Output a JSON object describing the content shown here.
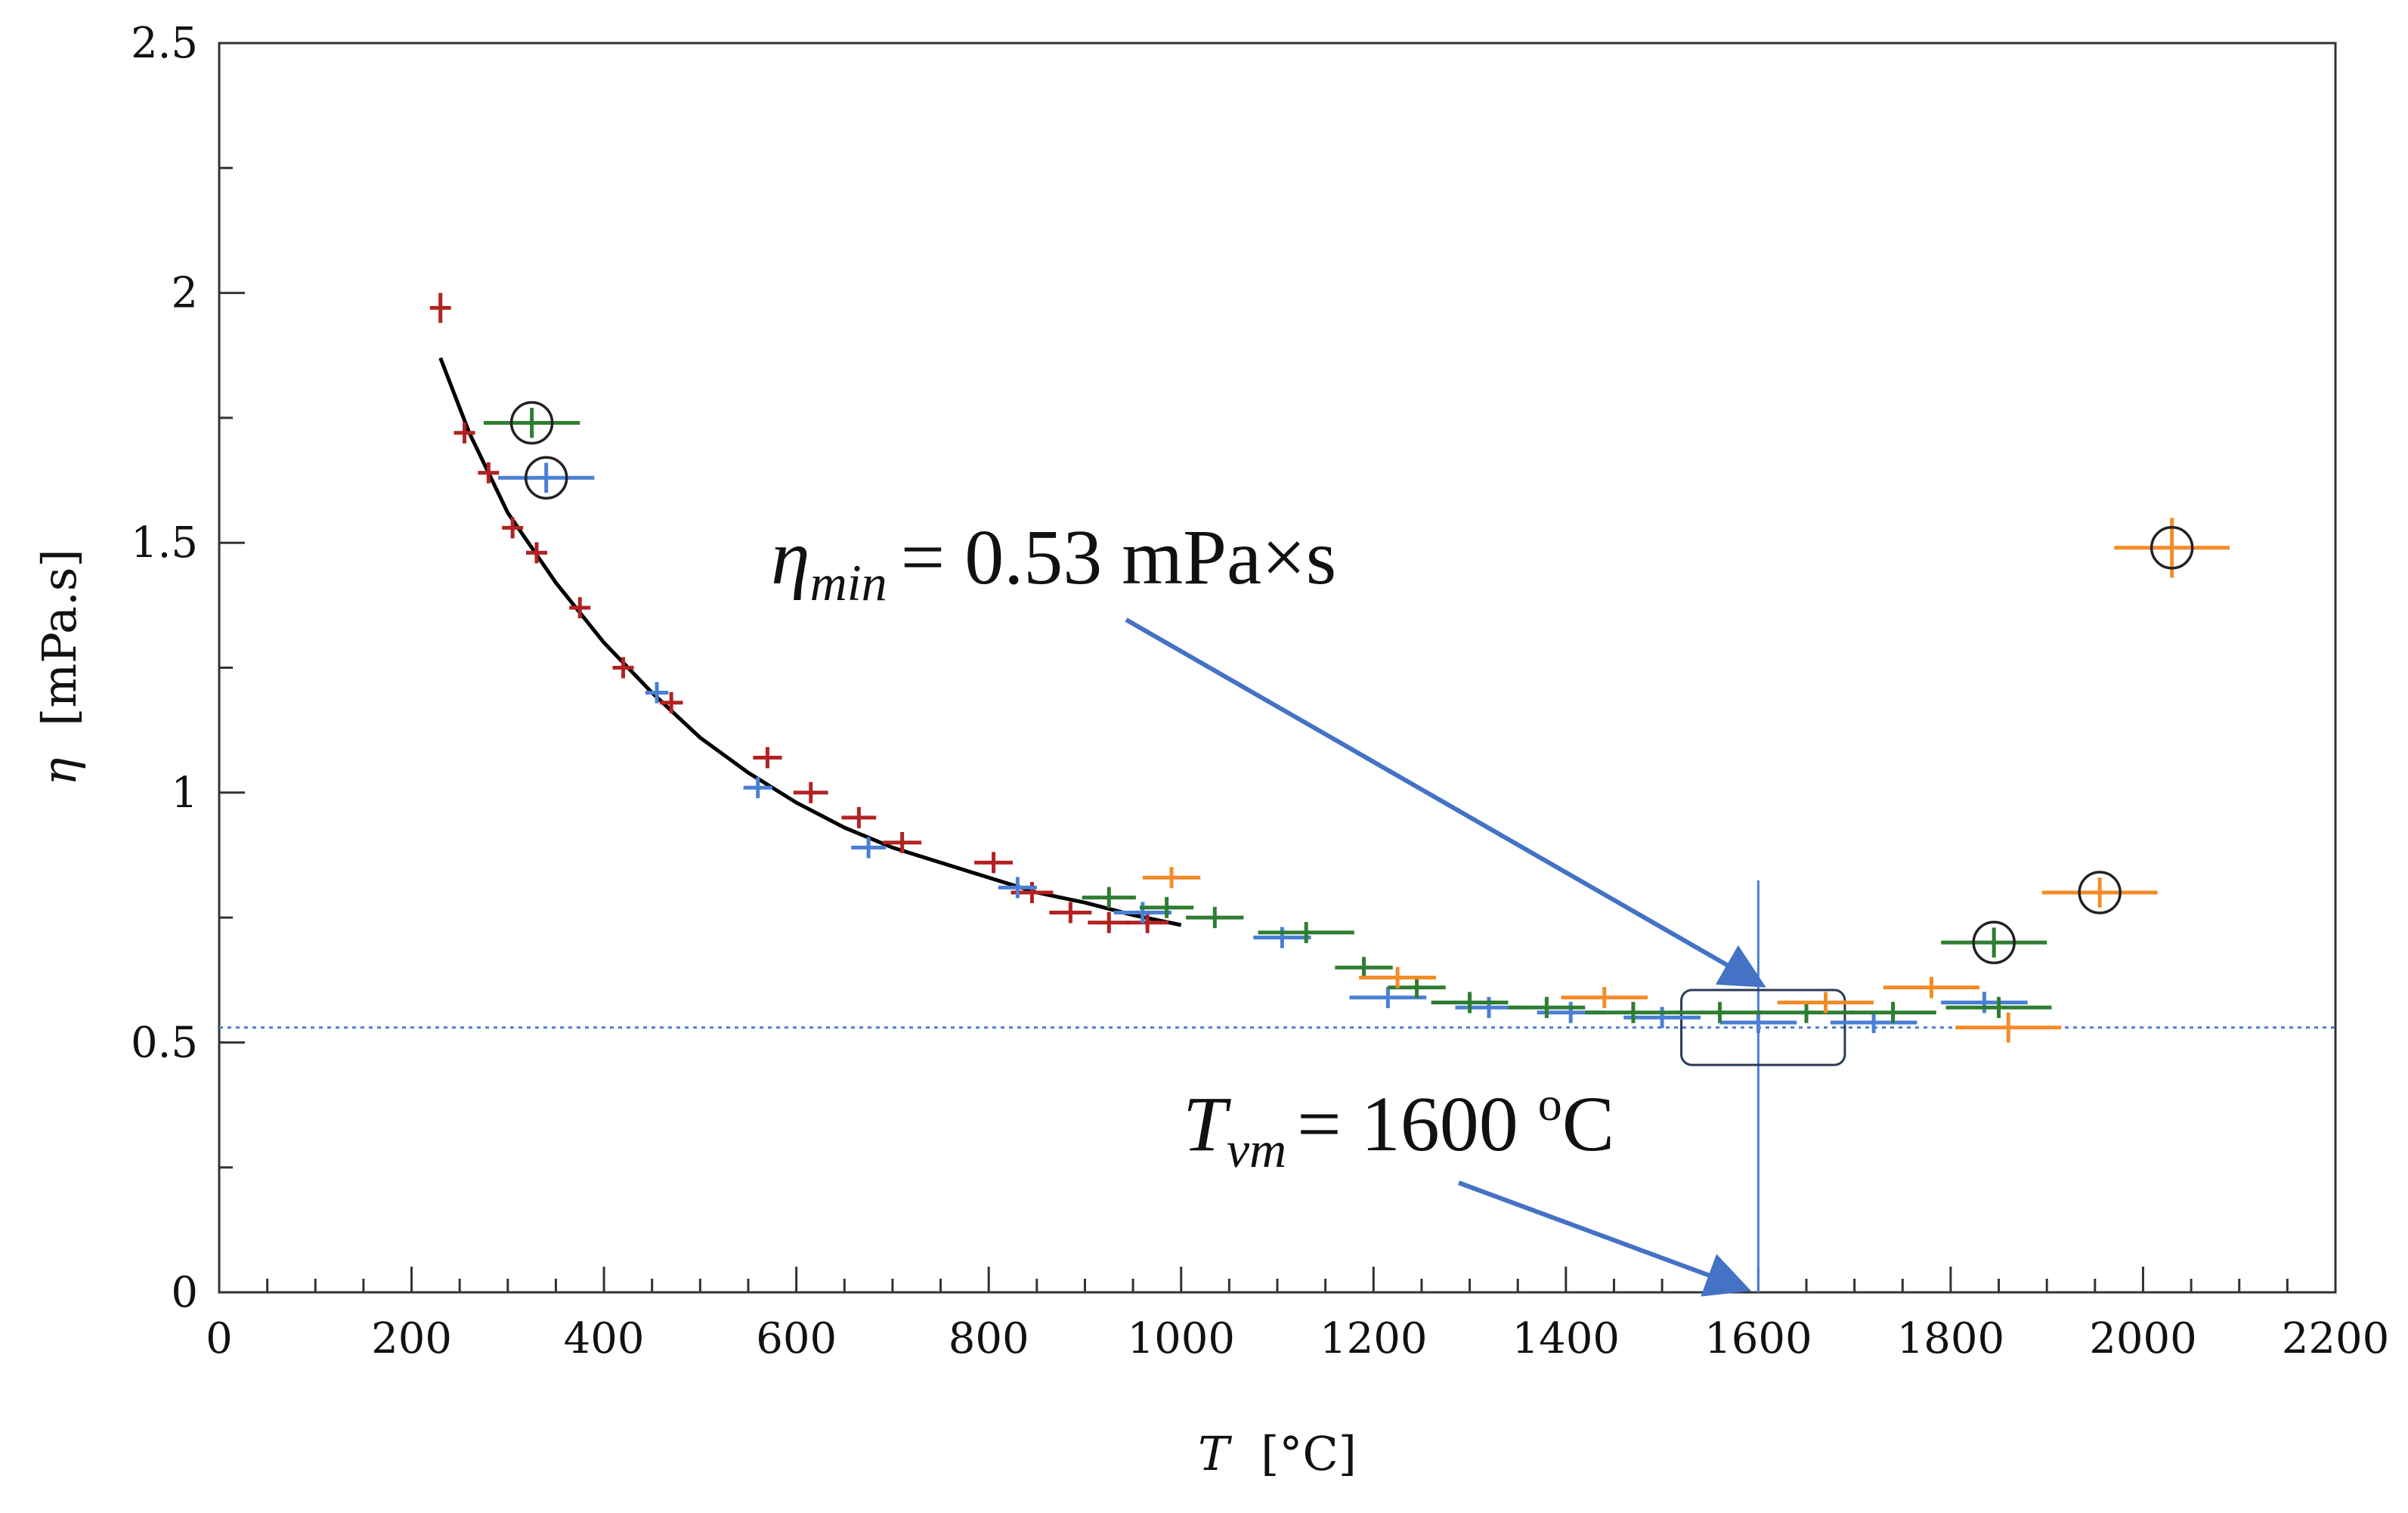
{
  "chart_data": {
    "type": "scatter",
    "title": "",
    "xlabel": {
      "var": "T",
      "unit": "[°C]"
    },
    "ylabel": {
      "var": "η",
      "unit": "[mPa.s]"
    },
    "xlim": [
      0,
      2200
    ],
    "ylim": [
      0,
      2.5
    ],
    "x_ticks": [
      "0",
      "200",
      "400",
      "600",
      "800",
      "1000",
      "1200",
      "1400",
      "1600",
      "1800",
      "2000",
      "2200"
    ],
    "y_ticks": [
      "0",
      "0.5",
      "1",
      "1.5",
      "2",
      "2.5"
    ],
    "grid": false,
    "legend": "none",
    "series": [
      {
        "color": "#b22222",
        "points": [
          {
            "x": 230,
            "y": 1.97,
            "xerr": 8,
            "yerr": 0.03
          },
          {
            "x": 255,
            "y": 1.72,
            "xerr": 8,
            "yerr": 0.02
          },
          {
            "x": 280,
            "y": 1.64,
            "xerr": 8,
            "yerr": 0.02
          },
          {
            "x": 305,
            "y": 1.53,
            "xerr": 8,
            "yerr": 0.02
          },
          {
            "x": 330,
            "y": 1.48,
            "xerr": 8,
            "yerr": 0.02
          },
          {
            "x": 375,
            "y": 1.37,
            "xerr": 10,
            "yerr": 0.02
          },
          {
            "x": 420,
            "y": 1.25,
            "xerr": 10,
            "yerr": 0.02
          },
          {
            "x": 470,
            "y": 1.18,
            "xerr": 12,
            "yerr": 0.02
          },
          {
            "x": 570,
            "y": 1.07,
            "xerr": 15,
            "yerr": 0.01
          },
          {
            "x": 615,
            "y": 1.0,
            "xerr": 18,
            "yerr": 0.01
          },
          {
            "x": 665,
            "y": 0.95,
            "xerr": 18,
            "yerr": 0.01
          },
          {
            "x": 710,
            "y": 0.9,
            "xerr": 20,
            "yerr": 0.01
          },
          {
            "x": 805,
            "y": 0.86,
            "xerr": 20,
            "yerr": 0.01
          },
          {
            "x": 845,
            "y": 0.8,
            "xerr": 22,
            "yerr": 0.01
          },
          {
            "x": 885,
            "y": 0.76,
            "xerr": 22,
            "yerr": 0.01
          },
          {
            "x": 925,
            "y": 0.74,
            "xerr": 22,
            "yerr": 0.01
          },
          {
            "x": 965,
            "y": 0.74,
            "xerr": 22,
            "yerr": 0.01
          }
        ]
      },
      {
        "color": "#4a7fd4",
        "points": [
          {
            "x": 340,
            "y": 1.63,
            "xerr": 50,
            "yerr": 0.03,
            "circled": true
          },
          {
            "x": 455,
            "y": 1.2,
            "xerr": 12,
            "yerr": 0.02
          },
          {
            "x": 560,
            "y": 1.01,
            "xerr": 15,
            "yerr": 0.02
          },
          {
            "x": 675,
            "y": 0.89,
            "xerr": 18,
            "yerr": 0.02
          },
          {
            "x": 830,
            "y": 0.81,
            "xerr": 20,
            "yerr": 0.02
          },
          {
            "x": 960,
            "y": 0.76,
            "xerr": 30,
            "yerr": 0.02
          },
          {
            "x": 1105,
            "y": 0.71,
            "xerr": 30,
            "yerr": 0.02
          },
          {
            "x": 1215,
            "y": 0.59,
            "xerr": 40,
            "yerr": 0.02
          },
          {
            "x": 1320,
            "y": 0.57,
            "xerr": 35,
            "yerr": 0.01
          },
          {
            "x": 1405,
            "y": 0.56,
            "xerr": 35,
            "yerr": 0.01
          },
          {
            "x": 1500,
            "y": 0.55,
            "xerr": 40,
            "yerr": 0.01
          },
          {
            "x": 1600,
            "y": 0.54,
            "xerr": 40,
            "yerr": 0.01
          },
          {
            "x": 1720,
            "y": 0.54,
            "xerr": 45,
            "yerr": 0.01
          },
          {
            "x": 1835,
            "y": 0.58,
            "xerr": 45,
            "yerr": 0.01
          }
        ]
      },
      {
        "color": "#2e7d32",
        "points": [
          {
            "x": 325,
            "y": 1.74,
            "xerr": 50,
            "yerr": 0.03,
            "circled": true
          },
          {
            "x": 925,
            "y": 0.79,
            "xerr": 28,
            "yerr": 0.02
          },
          {
            "x": 985,
            "y": 0.77,
            "xerr": 28,
            "yerr": 0.02
          },
          {
            "x": 1035,
            "y": 0.75,
            "xerr": 30,
            "yerr": 0.02
          },
          {
            "x": 1130,
            "y": 0.72,
            "xerr": 50,
            "yerr": 0.02
          },
          {
            "x": 1190,
            "y": 0.65,
            "xerr": 30,
            "yerr": 0.02
          },
          {
            "x": 1245,
            "y": 0.61,
            "xerr": 30,
            "yerr": 0.02
          },
          {
            "x": 1300,
            "y": 0.58,
            "xerr": 40,
            "yerr": 0.01
          },
          {
            "x": 1380,
            "y": 0.57,
            "xerr": 40,
            "yerr": 0.01
          },
          {
            "x": 1470,
            "y": 0.56,
            "xerr": 50,
            "yerr": 0.01
          },
          {
            "x": 1560,
            "y": 0.56,
            "xerr": 45,
            "yerr": 0.01
          },
          {
            "x": 1650,
            "y": 0.56,
            "xerr": 50,
            "yerr": 0.01
          },
          {
            "x": 1740,
            "y": 0.56,
            "xerr": 45,
            "yerr": 0.01
          },
          {
            "x": 1850,
            "y": 0.57,
            "xerr": 55,
            "yerr": 0.01
          },
          {
            "x": 1845,
            "y": 0.7,
            "xerr": 55,
            "yerr": 0.03,
            "circled": true
          }
        ]
      },
      {
        "color": "#f28c28",
        "points": [
          {
            "x": 990,
            "y": 0.83,
            "xerr": 30,
            "yerr": 0.02
          },
          {
            "x": 1225,
            "y": 0.63,
            "xerr": 40,
            "yerr": 0.02
          },
          {
            "x": 1440,
            "y": 0.59,
            "xerr": 45,
            "yerr": 0.02
          },
          {
            "x": 1670,
            "y": 0.58,
            "xerr": 50,
            "yerr": 0.02
          },
          {
            "x": 1780,
            "y": 0.61,
            "xerr": 50,
            "yerr": 0.02
          },
          {
            "x": 1860,
            "y": 0.53,
            "xerr": 55,
            "yerr": 0.03
          },
          {
            "x": 1955,
            "y": 0.8,
            "xerr": 60,
            "yerr": 0.03,
            "circled": true
          },
          {
            "x": 2030,
            "y": 1.49,
            "xerr": 60,
            "yerr": 0.06,
            "circled": true
          }
        ]
      }
    ],
    "fit_curve": {
      "color": "#000000",
      "points": [
        [
          230,
          1.87
        ],
        [
          260,
          1.72
        ],
        [
          300,
          1.56
        ],
        [
          350,
          1.42
        ],
        [
          400,
          1.3
        ],
        [
          450,
          1.2
        ],
        [
          500,
          1.11
        ],
        [
          550,
          1.04
        ],
        [
          600,
          0.98
        ],
        [
          650,
          0.93
        ],
        [
          700,
          0.89
        ],
        [
          750,
          0.86
        ],
        [
          800,
          0.83
        ],
        [
          850,
          0.8
        ],
        [
          900,
          0.78
        ],
        [
          950,
          0.755
        ],
        [
          1000,
          0.735
        ]
      ]
    },
    "reference_lines": {
      "horizontal": {
        "y": 0.53,
        "color": "#4a7fd4",
        "style": "dotted"
      },
      "vertical": {
        "x": 1600,
        "color": "#4a7fd4",
        "style": "solid"
      }
    },
    "highlight_box": {
      "x0": 1520,
      "x1": 1690,
      "y0": 0.455,
      "y1": 0.605
    },
    "annotations": [
      {
        "symbol": "η",
        "subscript": "min",
        "text": "= 0.53 mPa×s",
        "arrow_to": {
          "x": 1600,
          "y": 0.61
        }
      },
      {
        "symbol": "T",
        "subscript": "vm",
        "text": "= 1600 ",
        "superscript": "o",
        "unit": "C",
        "arrow_to": {
          "x": 1590,
          "y": 0.0
        }
      }
    ]
  }
}
